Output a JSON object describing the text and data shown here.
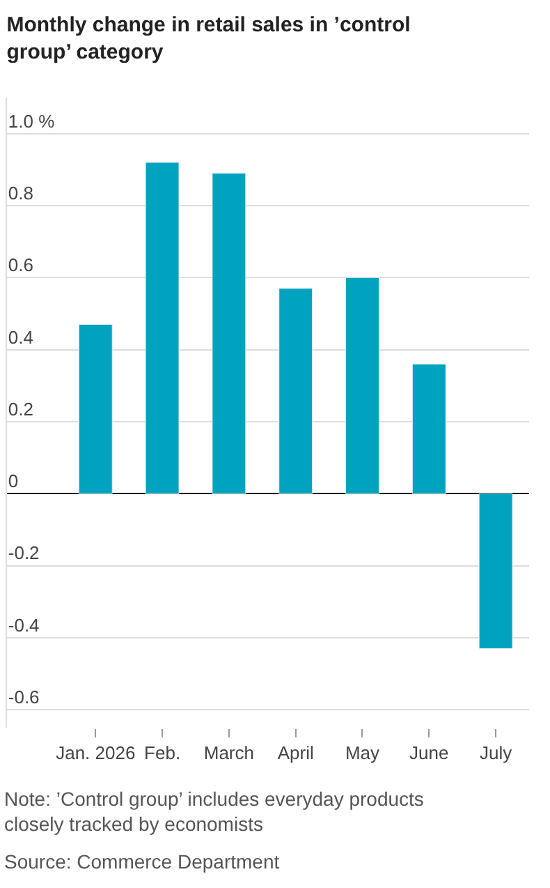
{
  "chart_data": {
    "type": "bar",
    "title": "Monthly change in retail sales in ’control group’ category",
    "categories": [
      "Jan. 2026",
      "Feb.",
      "March",
      "April",
      "May",
      "June",
      "July"
    ],
    "values": [
      0.47,
      0.92,
      0.89,
      0.57,
      0.6,
      0.36,
      -0.43
    ],
    "color": "#00a3bf",
    "ylim": [
      -0.65,
      1.1
    ],
    "yticks": [
      {
        "value": 1.0,
        "label": "1.0 %"
      },
      0.8,
      0.6,
      0.4,
      0.2,
      0,
      -0.2,
      -0.4,
      -0.6
    ],
    "grid": "y",
    "annotations": [
      "Note: ’Control group’ includes everyday products closely tracked by economists",
      "Source: Commerce Department"
    ]
  }
}
